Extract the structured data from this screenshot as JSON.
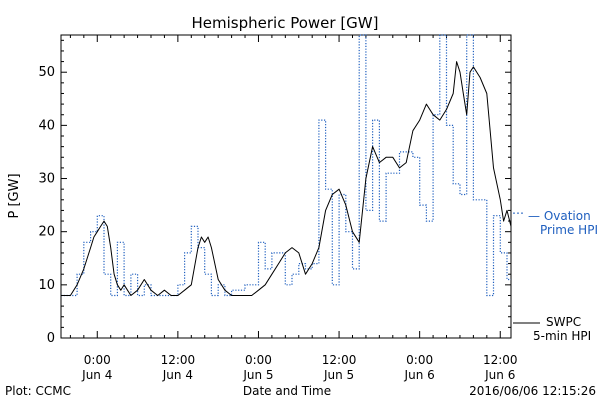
{
  "chart_data": {
    "type": "line",
    "title": "Hemispheric Power [GW]",
    "xlabel": "Date and Time",
    "ylabel": "P [GW]",
    "ylim": [
      0,
      57
    ],
    "xlim_hours": [
      -5.4,
      61.6
    ],
    "yticks": [
      0,
      10,
      20,
      30,
      40,
      50
    ],
    "xticks": [
      {
        "h": 0,
        "line1": "0:00",
        "line2": "Jun 4"
      },
      {
        "h": 12,
        "line1": "12:00",
        "line2": "Jun 4"
      },
      {
        "h": 24,
        "line1": "0:00",
        "line2": "Jun 5"
      },
      {
        "h": 36,
        "line1": "12:00",
        "line2": "Jun 5"
      },
      {
        "h": 48,
        "line1": "0:00",
        "line2": "Jun 6"
      },
      {
        "h": 60,
        "line1": "12:00",
        "line2": "Jun 6"
      }
    ],
    "series": [
      {
        "name": "Ovation Prime HPI",
        "legend_line1": "— Ovation",
        "legend_line2": "Prime HPI",
        "color": "#1f5fbf",
        "style": "dotted-step",
        "points": [
          [
            -5.4,
            8
          ],
          [
            -4,
            8
          ],
          [
            -3,
            12
          ],
          [
            -2,
            18
          ],
          [
            -1,
            20
          ],
          [
            0,
            23
          ],
          [
            1,
            12
          ],
          [
            2,
            8
          ],
          [
            3,
            18
          ],
          [
            4,
            8
          ],
          [
            5,
            12
          ],
          [
            6,
            8
          ],
          [
            7,
            10
          ],
          [
            8,
            8
          ],
          [
            9,
            8
          ],
          [
            10,
            8
          ],
          [
            11,
            8
          ],
          [
            12,
            10
          ],
          [
            13,
            16
          ],
          [
            14,
            21
          ],
          [
            15,
            17
          ],
          [
            16,
            12
          ],
          [
            17,
            8
          ],
          [
            18,
            10
          ],
          [
            19,
            8
          ],
          [
            20,
            9
          ],
          [
            21,
            9
          ],
          [
            22,
            10
          ],
          [
            23,
            10
          ],
          [
            24,
            18
          ],
          [
            25,
            13
          ],
          [
            26,
            16
          ],
          [
            27,
            16
          ],
          [
            28,
            10
          ],
          [
            29,
            12
          ],
          [
            30,
            14
          ],
          [
            31,
            13
          ],
          [
            32,
            14
          ],
          [
            33,
            41
          ],
          [
            34,
            28
          ],
          [
            35,
            10
          ],
          [
            36,
            27
          ],
          [
            37,
            20
          ],
          [
            38,
            13
          ],
          [
            39,
            57
          ],
          [
            40,
            24
          ],
          [
            41,
            41
          ],
          [
            42,
            22
          ],
          [
            43,
            31
          ],
          [
            44,
            31
          ],
          [
            45,
            35
          ],
          [
            46,
            35
          ],
          [
            47,
            34
          ],
          [
            48,
            25
          ],
          [
            49,
            22
          ],
          [
            50,
            42
          ],
          [
            51,
            57
          ],
          [
            52,
            40
          ],
          [
            53,
            29
          ],
          [
            54,
            27
          ],
          [
            55,
            57
          ],
          [
            56,
            26
          ],
          [
            57,
            26
          ],
          [
            58,
            8
          ],
          [
            59,
            23
          ],
          [
            60,
            16
          ],
          [
            61,
            11
          ],
          [
            61.6,
            11
          ]
        ]
      },
      {
        "name": "SWPC 5-min HPI",
        "legend_line1": "SWPC",
        "legend_line2": "5-min HPI",
        "color": "#000000",
        "style": "solid",
        "points": [
          [
            -5.4,
            8
          ],
          [
            -4,
            8
          ],
          [
            -3,
            10
          ],
          [
            -2,
            13
          ],
          [
            -1,
            17
          ],
          [
            -0.5,
            19
          ],
          [
            0,
            20
          ],
          [
            0.5,
            21
          ],
          [
            1,
            22
          ],
          [
            1.5,
            21
          ],
          [
            2,
            17
          ],
          [
            2.5,
            12
          ],
          [
            3,
            10
          ],
          [
            3.5,
            9
          ],
          [
            4,
            10
          ],
          [
            4.5,
            9
          ],
          [
            5,
            8
          ],
          [
            6,
            9
          ],
          [
            7,
            11
          ],
          [
            8,
            9
          ],
          [
            9,
            8
          ],
          [
            10,
            9
          ],
          [
            11,
            8
          ],
          [
            12,
            8
          ],
          [
            13,
            9
          ],
          [
            14,
            10
          ],
          [
            15,
            17
          ],
          [
            15.5,
            19
          ],
          [
            16,
            18
          ],
          [
            16.5,
            19
          ],
          [
            17,
            17
          ],
          [
            18,
            11
          ],
          [
            19,
            9
          ],
          [
            20,
            8
          ],
          [
            21,
            8
          ],
          [
            22,
            8
          ],
          [
            23,
            8
          ],
          [
            24,
            9
          ],
          [
            25,
            10
          ],
          [
            26,
            12
          ],
          [
            27,
            14
          ],
          [
            28,
            16
          ],
          [
            29,
            17
          ],
          [
            30,
            16
          ],
          [
            31,
            12
          ],
          [
            32,
            14
          ],
          [
            33,
            17
          ],
          [
            34,
            24
          ],
          [
            35,
            27
          ],
          [
            36,
            28
          ],
          [
            37,
            25
          ],
          [
            38,
            20
          ],
          [
            39,
            18
          ],
          [
            40,
            30
          ],
          [
            41,
            36
          ],
          [
            42,
            33
          ],
          [
            43,
            34
          ],
          [
            44,
            34
          ],
          [
            45,
            32
          ],
          [
            46,
            33
          ],
          [
            47,
            39
          ],
          [
            48,
            41
          ],
          [
            49,
            44
          ],
          [
            50,
            42
          ],
          [
            51,
            41
          ],
          [
            52,
            43
          ],
          [
            53,
            46
          ],
          [
            53.5,
            52
          ],
          [
            54,
            50
          ],
          [
            54.5,
            46
          ],
          [
            55,
            42
          ],
          [
            55.5,
            50
          ],
          [
            56,
            51
          ],
          [
            57,
            49
          ],
          [
            58,
            46
          ],
          [
            59,
            32
          ],
          [
            60,
            26
          ],
          [
            60.5,
            22
          ],
          [
            61,
            24
          ],
          [
            61.6,
            21
          ]
        ]
      }
    ]
  },
  "footer": {
    "plot_credit": "Plot: CCMC",
    "timestamp": "2016/06/06 12:15:26"
  }
}
